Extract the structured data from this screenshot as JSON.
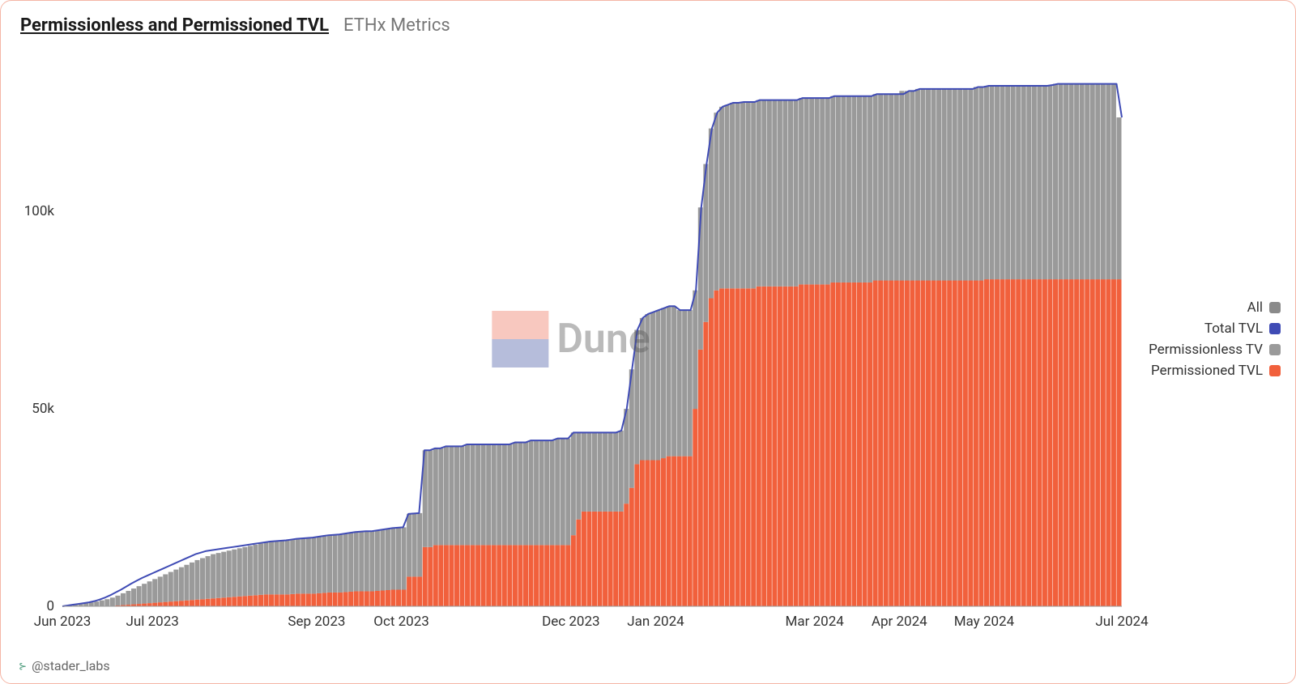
{
  "header": {
    "title": "Permissionless and Permissioned TVL",
    "subtitle": "ETHx Metrics"
  },
  "footer": {
    "handle": "@stader_labs"
  },
  "watermark": {
    "text": "Dune"
  },
  "legend": {
    "items": [
      {
        "label": "All",
        "color": "#8a8a8a"
      },
      {
        "label": "Total TVL",
        "color": "#3f4bb5"
      },
      {
        "label": "Permissionless TV",
        "color": "#9a9a9a"
      },
      {
        "label": "Permissioned TVL",
        "color": "#f1603c"
      }
    ]
  },
  "chart": {
    "type": "stacked-bar-with-line",
    "background_color": "#ffffff",
    "ylim": [
      0,
      140000
    ],
    "yticks": [
      {
        "value": 0,
        "label": "0"
      },
      {
        "value": 50000,
        "label": "50k"
      },
      {
        "value": 100000,
        "label": "100k"
      }
    ],
    "xticks": [
      "Jun 2023",
      "Jul 2023",
      "Sep 2023",
      "Oct 2023",
      "Dec 2023",
      "Jan 2024",
      "Mar 2024",
      "Apr 2024",
      "May 2024",
      "Jul 2024"
    ],
    "xtick_positions": [
      0,
      0.085,
      0.24,
      0.32,
      0.48,
      0.56,
      0.71,
      0.79,
      0.87,
      1.0
    ],
    "colors": {
      "permissioned": "#f1603c",
      "permissionless": "#9a9a9a",
      "total_line": "#3f4bb5"
    },
    "line_width": 2,
    "tick_fontsize": 17,
    "data": {
      "n_points": 200,
      "permissioned": [
        0,
        0,
        0,
        0,
        0,
        0,
        0,
        0,
        0,
        100,
        200,
        300,
        400,
        500,
        600,
        700,
        800,
        900,
        1000,
        1100,
        1200,
        1300,
        1400,
        1500,
        1600,
        1700,
        1800,
        1900,
        2000,
        2100,
        2200,
        2300,
        2400,
        2500,
        2600,
        2700,
        2800,
        2900,
        3000,
        3000,
        3000,
        3000,
        3000,
        3100,
        3200,
        3200,
        3200,
        3200,
        3300,
        3400,
        3500,
        3500,
        3500,
        3600,
        3700,
        3800,
        3800,
        3800,
        3800,
        3900,
        4000,
        4100,
        4200,
        4200,
        4200,
        7500,
        7500,
        7500,
        15000,
        15000,
        15500,
        15500,
        15500,
        15500,
        15500,
        15500,
        15500,
        15500,
        15500,
        15500,
        15500,
        15500,
        15500,
        15500,
        15500,
        15500,
        15500,
        15500,
        15500,
        15500,
        15500,
        15500,
        15500,
        15500,
        15500,
        15500,
        18000,
        22000,
        24000,
        24000,
        24000,
        24000,
        24000,
        24000,
        24000,
        24000,
        26000,
        30000,
        36000,
        37000,
        37000,
        37000,
        37000,
        37500,
        38000,
        38000,
        38000,
        38000,
        38000,
        50000,
        65000,
        72000,
        78000,
        80000,
        80500,
        80500,
        80500,
        80500,
        80500,
        80500,
        80500,
        81000,
        81000,
        81000,
        81000,
        81000,
        81000,
        81000,
        81000,
        81500,
        81500,
        81500,
        81500,
        81500,
        81500,
        82000,
        82000,
        82000,
        82000,
        82000,
        82000,
        82000,
        82000,
        82500,
        82500,
        82500,
        82500,
        82500,
        82500,
        82500,
        82500,
        82500,
        82500,
        82500,
        82500,
        82500,
        82500,
        82500,
        82500,
        82500,
        82500,
        82500,
        82500,
        82500,
        82800,
        82800,
        82800,
        82800,
        82800,
        82800,
        82800,
        82800,
        82800,
        82800,
        82800,
        82800,
        82800,
        82800,
        82800,
        82800,
        82800,
        82800,
        82800,
        82800,
        82800,
        82800,
        82800,
        82800,
        82800,
        82800
      ],
      "permissionless": [
        0,
        200,
        400,
        600,
        800,
        1000,
        1200,
        1500,
        1800,
        2100,
        2500,
        3000,
        3500,
        4000,
        4500,
        5000,
        5500,
        6000,
        6500,
        7000,
        7500,
        8000,
        8500,
        9000,
        9500,
        10000,
        10400,
        10800,
        11200,
        11400,
        11600,
        11800,
        12000,
        12200,
        12400,
        12600,
        12800,
        13000,
        13200,
        13400,
        13500,
        13600,
        13700,
        13800,
        13900,
        14000,
        14100,
        14200,
        14300,
        14400,
        14500,
        14600,
        14700,
        14800,
        14900,
        15000,
        15100,
        15200,
        15200,
        15300,
        15400,
        15500,
        15600,
        15700,
        15800,
        15900,
        16000,
        16100,
        24500,
        24500,
        24500,
        24500,
        25000,
        25000,
        25000,
        25000,
        25500,
        25500,
        25500,
        25500,
        25500,
        25500,
        25500,
        25500,
        25500,
        26000,
        26000,
        26000,
        26500,
        26500,
        26500,
        26500,
        26500,
        27000,
        27000,
        27000,
        26000,
        22000,
        20000,
        20000,
        20000,
        20000,
        20000,
        20000,
        20000,
        20500,
        24000,
        30000,
        34000,
        36000,
        37000,
        37500,
        38000,
        38000,
        38000,
        38000,
        37000,
        37000,
        37000,
        30000,
        36000,
        40000,
        43000,
        45000,
        46000,
        46500,
        47000,
        47000,
        47200,
        47200,
        47200,
        47200,
        47200,
        47200,
        47200,
        47200,
        47200,
        47200,
        47200,
        47200,
        47200,
        47200,
        47200,
        47200,
        47200,
        47200,
        47200,
        47200,
        47200,
        47200,
        47200,
        47200,
        47200,
        47200,
        47200,
        47200,
        47200,
        47200,
        48000,
        48000,
        48000,
        48500,
        48500,
        48500,
        48500,
        48500,
        48500,
        48500,
        48500,
        48500,
        48500,
        48500,
        49000,
        49000,
        49000,
        49000,
        49000,
        49000,
        49000,
        49000,
        49000,
        49000,
        49000,
        49000,
        49000,
        49000,
        49200,
        49500,
        49500,
        49500,
        49500,
        49500,
        49500,
        49500,
        49500,
        49500,
        49500,
        49500,
        49500,
        41000
      ],
      "total_line": [
        0,
        200,
        400,
        600,
        800,
        1000,
        1300,
        1700,
        2200,
        2800,
        3500,
        4200,
        5000,
        5800,
        6500,
        7200,
        7800,
        8400,
        9000,
        9600,
        10200,
        10800,
        11400,
        12000,
        12600,
        13200,
        13600,
        14000,
        14200,
        14400,
        14600,
        14800,
        15000,
        15200,
        15400,
        15600,
        15800,
        16000,
        16200,
        16400,
        16500,
        16600,
        16700,
        16900,
        17100,
        17200,
        17300,
        17400,
        17600,
        17800,
        18000,
        18100,
        18200,
        18400,
        18600,
        18800,
        18900,
        19000,
        19000,
        19200,
        19400,
        19600,
        19800,
        19900,
        20000,
        23400,
        23500,
        23600,
        39500,
        39500,
        40000,
        40000,
        40500,
        40500,
        40500,
        40500,
        41000,
        41000,
        41000,
        41000,
        41000,
        41000,
        41000,
        41000,
        41000,
        41500,
        41500,
        41500,
        42000,
        42000,
        42000,
        42000,
        42000,
        42500,
        42500,
        42500,
        44000,
        44000,
        44000,
        44000,
        44000,
        44000,
        44000,
        44000,
        44000,
        44500,
        50000,
        60000,
        70000,
        73000,
        74000,
        74500,
        75000,
        75500,
        76000,
        76000,
        75000,
        75000,
        75000,
        80000,
        101000,
        112000,
        121000,
        125000,
        126500,
        127000,
        127500,
        127500,
        127700,
        127700,
        127700,
        128200,
        128200,
        128200,
        128200,
        128200,
        128200,
        128200,
        128200,
        128700,
        128700,
        128700,
        128700,
        128700,
        128700,
        129200,
        129200,
        129200,
        129200,
        129200,
        129200,
        129200,
        129200,
        129700,
        129700,
        129700,
        129700,
        129700,
        129700,
        130500,
        130500,
        131000,
        131000,
        131000,
        131000,
        131000,
        131000,
        131000,
        131000,
        131000,
        131000,
        131000,
        131500,
        131500,
        131800,
        131800,
        131800,
        131800,
        131800,
        131800,
        131800,
        131800,
        131800,
        131800,
        131800,
        131800,
        132000,
        132300,
        132300,
        132300,
        132300,
        132300,
        132300,
        132300,
        132300,
        132300,
        132300,
        132300,
        132300,
        123800
      ]
    }
  }
}
